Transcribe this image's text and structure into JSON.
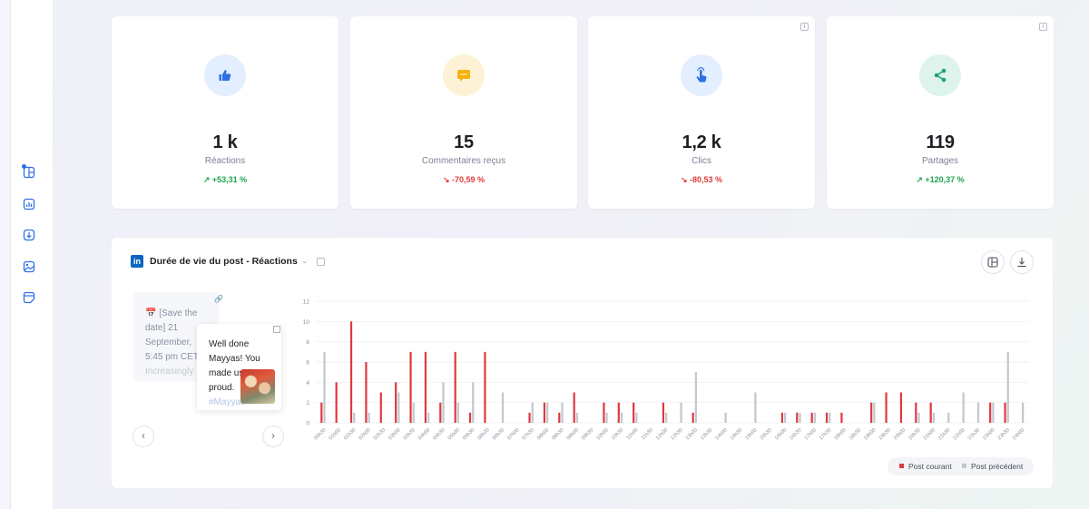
{
  "sidebar": {
    "items": [
      {
        "icon": "layout-add-icon"
      },
      {
        "icon": "analytics-icon"
      },
      {
        "icon": "download-circle-icon"
      },
      {
        "icon": "image-gallery-icon"
      },
      {
        "icon": "sticker-icon"
      }
    ]
  },
  "stats": [
    {
      "icon": "thumbs-up-icon",
      "value": "1 k",
      "label": "Réactions",
      "delta": "↗ +53,31 %",
      "trend": "up",
      "icon_color": "#2f6fe4",
      "icon_bg": "#e3efff"
    },
    {
      "icon": "comment-icon",
      "value": "15",
      "label": "Commentaires reçus",
      "delta": "↘ -70,59 %",
      "trend": "down",
      "icon_color": "#f5b10d",
      "icon_bg": "#fdf2d6"
    },
    {
      "icon": "tap-icon",
      "value": "1,2 k",
      "label": "Clics",
      "delta": "↘ -80,53 %",
      "trend": "down",
      "icon_color": "#2f6fe4",
      "icon_bg": "#e3efff"
    },
    {
      "icon": "share-icon",
      "value": "119",
      "label": "Partages",
      "delta": "↗ +120,37 %",
      "trend": "up",
      "icon_color": "#1ea37a",
      "icon_bg": "#ddf3ec"
    }
  ],
  "colors": {
    "up": "#1fa64f",
    "down": "#e03a3a",
    "current": "#e0383f",
    "previous": "#c2c7cf",
    "linkedin": "#0a66c2"
  },
  "chart_panel": {
    "network_logo": "in",
    "title": "Durée de vie du post - Réactions",
    "preview_text": {
      "line1": "📅 [Save the",
      "line2": "date] 21",
      "line3": "September,",
      "line4": "5:45 pm CET",
      "line5": "Increasingly"
    },
    "popup_text": {
      "line1": "Well done",
      "line2": "Mayyas! You",
      "line3": "made us",
      "line4": "proud.",
      "line5": "#Mayyas"
    },
    "prev_label": "‹",
    "next_label": "›",
    "legend": {
      "current": "Post courant",
      "previous": "Post précédent"
    }
  },
  "chart_data": {
    "type": "bar",
    "ylim": [
      0,
      12
    ],
    "yticks": [
      0,
      2,
      4,
      6,
      8,
      10,
      12
    ],
    "categories": [
      "00h30",
      "01h00",
      "01h30",
      "02h00",
      "02h30",
      "03h00",
      "03h30",
      "04h00",
      "04h30",
      "05h00",
      "05h30",
      "06h00",
      "06h30",
      "07h00",
      "07h30",
      "08h00",
      "08h30",
      "09h00",
      "09h30",
      "10h00",
      "10h30",
      "11h00",
      "11h30",
      "12h00",
      "12h30",
      "13h00",
      "13h30",
      "14h00",
      "14h30",
      "15h00",
      "15h30",
      "16h00",
      "16h30",
      "17h00",
      "17h30",
      "18h00",
      "18h30",
      "19h00",
      "19h30",
      "20h00",
      "20h30",
      "21h00",
      "21h30",
      "22h00",
      "22h30",
      "23h00",
      "23h30",
      "24h00"
    ],
    "series": [
      {
        "name": "Post courant",
        "values": [
          2,
          4,
          10,
          6,
          3,
          4,
          7,
          7,
          2,
          7,
          1,
          7,
          0,
          0,
          1,
          2,
          1,
          3,
          0,
          2,
          2,
          2,
          0,
          2,
          0,
          1,
          0,
          0,
          0,
          0,
          0,
          1,
          1,
          1,
          1,
          1,
          0,
          2,
          3,
          3,
          2,
          2,
          0,
          0,
          0,
          2,
          2,
          0
        ]
      },
      {
        "name": "Post précédent",
        "values": [
          7,
          0,
          1,
          1,
          0,
          3,
          2,
          1,
          4,
          2,
          4,
          0,
          3,
          0,
          2,
          2,
          2,
          1,
          0,
          1,
          1,
          1,
          0,
          1,
          2,
          5,
          0,
          1,
          0,
          3,
          0,
          1,
          1,
          1,
          1,
          0,
          0,
          2,
          0,
          0,
          1,
          1,
          1,
          3,
          2,
          2,
          7,
          2
        ]
      }
    ]
  }
}
